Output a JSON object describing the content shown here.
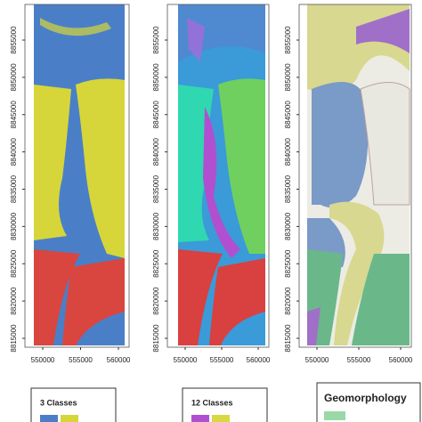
{
  "panels": [
    {
      "yticks": [
        8815000,
        8820000,
        8825000,
        8830000,
        8835000,
        8840000,
        8845000,
        8850000,
        8855000
      ],
      "xticks": [
        550000,
        555000,
        560000
      ],
      "legend_title": "3 Classes"
    },
    {
      "yticks": [
        8815000,
        8820000,
        8825000,
        8830000,
        8835000,
        8840000,
        8845000,
        8850000,
        8855000
      ],
      "xticks": [
        550000,
        555000,
        560000
      ],
      "legend_title": "12 Classes"
    },
    {
      "yticks": [
        8815000,
        8820000,
        8825000,
        8830000,
        8835000,
        8840000,
        8845000,
        8850000,
        8855000
      ],
      "xticks": [
        550000,
        555000,
        560000
      ],
      "legend_title": "Geomorphology"
    }
  ]
}
